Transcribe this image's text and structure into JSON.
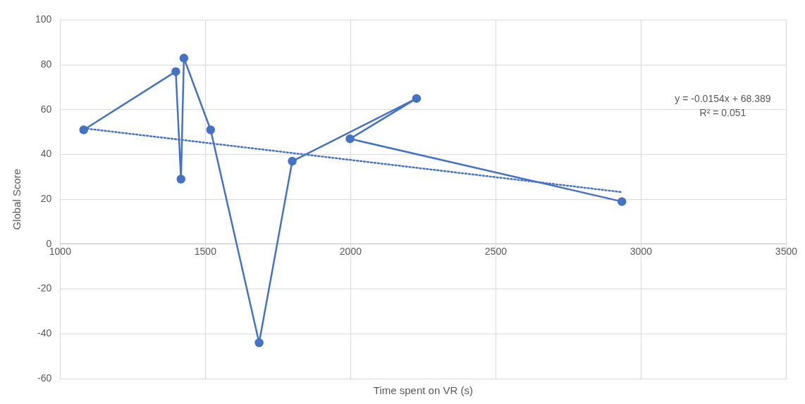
{
  "chart_data": {
    "type": "line",
    "xlabel": "Time spent on VR (s)",
    "ylabel": "Global Score",
    "xlim": [
      1000,
      3500
    ],
    "xticks": [
      1000,
      1500,
      2000,
      2500,
      3000,
      3500
    ],
    "ylim": [
      -60,
      100
    ],
    "yticks": [
      -60,
      -40,
      -20,
      0,
      20,
      40,
      60,
      80,
      100
    ],
    "grid": true,
    "annotations": [
      "y = -0.0154x + 68.389",
      "R² = 0.051"
    ],
    "series": [
      {
        "color": "#4472c4",
        "marker": "circle",
        "line_style": "solid",
        "x": [
          1081,
          1398,
          1416,
          1426,
          1518,
          1685,
          1799,
          2227,
          1998,
          2934
        ],
        "values": [
          51,
          77,
          29,
          83,
          51,
          -44,
          37,
          65,
          47,
          19
        ]
      },
      {
        "color": "#4472c4",
        "marker": "none",
        "line_style": "dotted",
        "x": [
          1081,
          2934
        ],
        "values": [
          51.7,
          23.2
        ]
      }
    ]
  }
}
